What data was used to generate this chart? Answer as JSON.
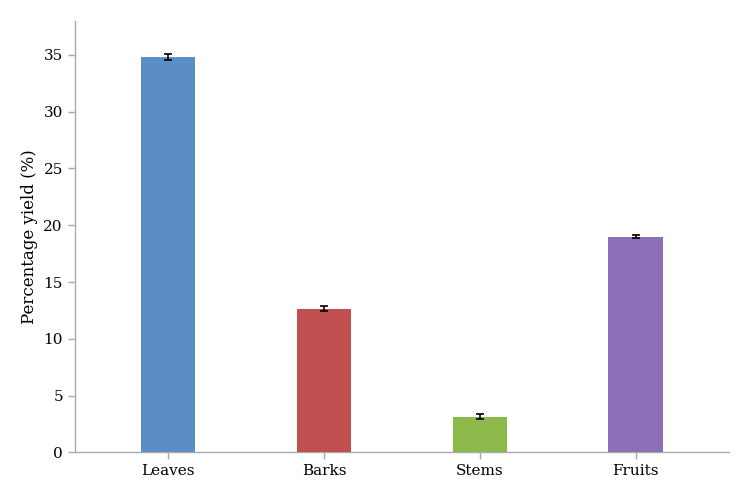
{
  "categories": [
    "Leaves",
    "Barks",
    "Stems",
    "Fruits"
  ],
  "values": [
    34.8,
    12.65,
    3.15,
    19.0
  ],
  "errors": [
    0.25,
    0.2,
    0.2,
    0.15
  ],
  "bar_colors": [
    "#5b8ec4",
    "#c05050",
    "#8db84a",
    "#8b70b8"
  ],
  "ylabel": "Percentage yield (%)",
  "ylim": [
    0,
    38
  ],
  "yticks": [
    0,
    5,
    10,
    15,
    20,
    25,
    30,
    35
  ],
  "bar_width": 0.35,
  "figsize": [
    7.5,
    4.99
  ],
  "dpi": 100,
  "background_color": "#ffffff",
  "error_capsize": 3,
  "error_color": "black",
  "error_linewidth": 1.2,
  "tick_labelsize": 11,
  "ylabel_fontsize": 12,
  "xlabel_fontsize": 13,
  "spine_color": "#aaaaaa"
}
